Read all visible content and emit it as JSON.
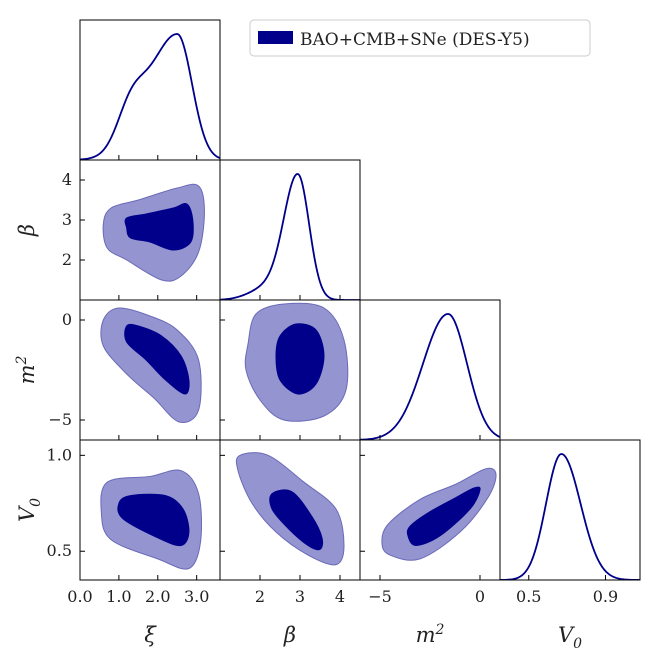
{
  "chart_data": {
    "type": "corner",
    "legend": {
      "label": "BAO+CMB+SNe (DES-Y5)",
      "color": "#00008b",
      "position": "top-right"
    },
    "colors": {
      "line": "#00008b",
      "inner_fill": "#00008b",
      "outer_fill": "#9494d0",
      "outer_stroke": "#6a6ab8"
    },
    "parameters": [
      {
        "key": "xi",
        "label_base": "ξ",
        "label_sup": "",
        "label_sub": "",
        "range": [
          0.0,
          3.6
        ],
        "ticks": [
          "0.0",
          "1.0",
          "2.0",
          "3.0"
        ],
        "tick_values": [
          0.0,
          1.0,
          2.0,
          3.0
        ],
        "mean": 2.5,
        "left_sd": 0.75,
        "right_sd": 0.38,
        "shoulder": {
          "center": 1.3,
          "sd": 0.35,
          "weight": 0.28
        }
      },
      {
        "key": "beta",
        "label_base": "β",
        "label_sup": "",
        "label_sub": "",
        "range": [
          1.0,
          4.5
        ],
        "ticks": [
          "2",
          "3",
          "4"
        ],
        "tick_values": [
          2,
          3,
          4
        ],
        "mean": 2.95,
        "left_sd": 0.35,
        "right_sd": 0.28,
        "shoulder": {
          "center": 2.2,
          "sd": 0.45,
          "weight": 0.1
        }
      },
      {
        "key": "m2",
        "label_base": "m",
        "label_sup": "2",
        "label_sub": "",
        "range": [
          -6.0,
          1.0
        ],
        "ticks": [
          "−5",
          "0"
        ],
        "tick_values": [
          -5,
          0
        ],
        "mean": -1.6,
        "left_sd": 1.25,
        "right_sd": 0.95,
        "shoulder": null
      },
      {
        "key": "V0",
        "label_base": "V",
        "label_sup": "",
        "label_sub": "0",
        "range": [
          0.35,
          1.08
        ],
        "ticks": [
          "0.5",
          "0.9"
        ],
        "tick_values": [
          0.5,
          0.9
        ],
        "mean": 0.67,
        "left_sd": 0.08,
        "right_sd": 0.1,
        "shoulder": null
      }
    ],
    "y_tick_rows": {
      "beta": {
        "ticks": [
          "2",
          "3",
          "4"
        ],
        "tick_values": [
          2,
          3,
          4
        ]
      },
      "m2": {
        "ticks": [
          "−5",
          "0"
        ],
        "tick_values": [
          -5,
          0
        ]
      },
      "V0": {
        "ticks": [
          "0.5",
          "1.0"
        ],
        "tick_values": [
          0.5,
          1.0
        ]
      }
    },
    "contours": [
      {
        "x": "xi",
        "y": "beta",
        "inner": [
          [
            1.2,
            2.8
          ],
          [
            1.2,
            3.05
          ],
          [
            1.7,
            3.15
          ],
          [
            2.4,
            3.3
          ],
          [
            2.75,
            3.4
          ],
          [
            2.9,
            3.0
          ],
          [
            2.85,
            2.45
          ],
          [
            2.4,
            2.25
          ],
          [
            1.8,
            2.45
          ],
          [
            1.3,
            2.55
          ]
        ],
        "outer": [
          [
            0.6,
            2.9
          ],
          [
            0.8,
            3.3
          ],
          [
            1.5,
            3.5
          ],
          [
            2.5,
            3.8
          ],
          [
            3.05,
            3.85
          ],
          [
            3.2,
            3.2
          ],
          [
            3.05,
            2.2
          ],
          [
            2.6,
            1.6
          ],
          [
            2.1,
            1.5
          ],
          [
            1.2,
            2.0
          ],
          [
            0.7,
            2.3
          ]
        ]
      },
      {
        "x": "xi",
        "y": "m2",
        "inner": [
          [
            1.2,
            -0.3
          ],
          [
            1.5,
            -0.3
          ],
          [
            2.1,
            -0.8
          ],
          [
            2.6,
            -1.8
          ],
          [
            2.8,
            -3.0
          ],
          [
            2.7,
            -3.7
          ],
          [
            2.2,
            -3.0
          ],
          [
            1.7,
            -2.0
          ],
          [
            1.2,
            -1.1
          ]
        ],
        "outer": [
          [
            0.6,
            0.0
          ],
          [
            1.0,
            0.6
          ],
          [
            1.8,
            0.2
          ],
          [
            2.5,
            -0.5
          ],
          [
            3.05,
            -2.0
          ],
          [
            3.05,
            -4.5
          ],
          [
            2.55,
            -5.1
          ],
          [
            1.9,
            -3.9
          ],
          [
            1.2,
            -2.7
          ],
          [
            0.6,
            -1.3
          ]
        ]
      },
      {
        "x": "xi",
        "y": "V0",
        "inner": [
          [
            1.0,
            0.75
          ],
          [
            1.3,
            0.79
          ],
          [
            2.2,
            0.79
          ],
          [
            2.65,
            0.72
          ],
          [
            2.8,
            0.6
          ],
          [
            2.6,
            0.53
          ],
          [
            2.0,
            0.57
          ],
          [
            1.1,
            0.67
          ]
        ],
        "outer": [
          [
            0.7,
            0.86
          ],
          [
            1.8,
            0.89
          ],
          [
            2.6,
            0.92
          ],
          [
            3.05,
            0.8
          ],
          [
            3.1,
            0.55
          ],
          [
            2.8,
            0.41
          ],
          [
            2.0,
            0.46
          ],
          [
            0.8,
            0.56
          ],
          [
            0.55,
            0.7
          ]
        ]
      },
      {
        "x": "beta",
        "y": "m2",
        "inner": [
          [
            2.4,
            -1.8
          ],
          [
            2.5,
            -0.8
          ],
          [
            2.9,
            -0.2
          ],
          [
            3.4,
            -0.5
          ],
          [
            3.6,
            -1.8
          ],
          [
            3.4,
            -3.2
          ],
          [
            2.95,
            -3.7
          ],
          [
            2.5,
            -3.0
          ]
        ],
        "outer": [
          [
            1.7,
            -1.2
          ],
          [
            1.9,
            0.3
          ],
          [
            2.6,
            0.8
          ],
          [
            3.6,
            0.6
          ],
          [
            4.1,
            -1.0
          ],
          [
            4.15,
            -3.5
          ],
          [
            3.6,
            -4.8
          ],
          [
            2.6,
            -5.0
          ],
          [
            2.0,
            -4.0
          ],
          [
            1.65,
            -2.5
          ]
        ]
      },
      {
        "x": "beta",
        "y": "V0",
        "inner": [
          [
            2.3,
            0.8
          ],
          [
            2.8,
            0.81
          ],
          [
            3.3,
            0.68
          ],
          [
            3.55,
            0.57
          ],
          [
            3.5,
            0.51
          ],
          [
            3.2,
            0.53
          ],
          [
            2.7,
            0.62
          ],
          [
            2.3,
            0.72
          ]
        ],
        "outer": [
          [
            1.5,
            1.0
          ],
          [
            2.2,
            1.0
          ],
          [
            3.1,
            0.86
          ],
          [
            3.9,
            0.72
          ],
          [
            4.1,
            0.53
          ],
          [
            3.9,
            0.43
          ],
          [
            3.2,
            0.48
          ],
          [
            2.4,
            0.6
          ],
          [
            1.8,
            0.75
          ],
          [
            1.45,
            0.92
          ]
        ]
      },
      {
        "x": "m2",
        "y": "V0",
        "inner": [
          [
            -3.6,
            0.58
          ],
          [
            -3.2,
            0.53
          ],
          [
            -2.0,
            0.58
          ],
          [
            -0.5,
            0.72
          ],
          [
            0.0,
            0.82
          ],
          [
            -0.3,
            0.83
          ],
          [
            -1.2,
            0.78
          ],
          [
            -2.6,
            0.7
          ],
          [
            -3.5,
            0.63
          ]
        ],
        "outer": [
          [
            -4.9,
            0.54
          ],
          [
            -4.5,
            0.48
          ],
          [
            -3.0,
            0.46
          ],
          [
            -1.0,
            0.6
          ],
          [
            0.4,
            0.78
          ],
          [
            0.8,
            0.9
          ],
          [
            0.3,
            0.93
          ],
          [
            -1.2,
            0.85
          ],
          [
            -3.0,
            0.77
          ],
          [
            -4.6,
            0.64
          ]
        ]
      }
    ]
  }
}
